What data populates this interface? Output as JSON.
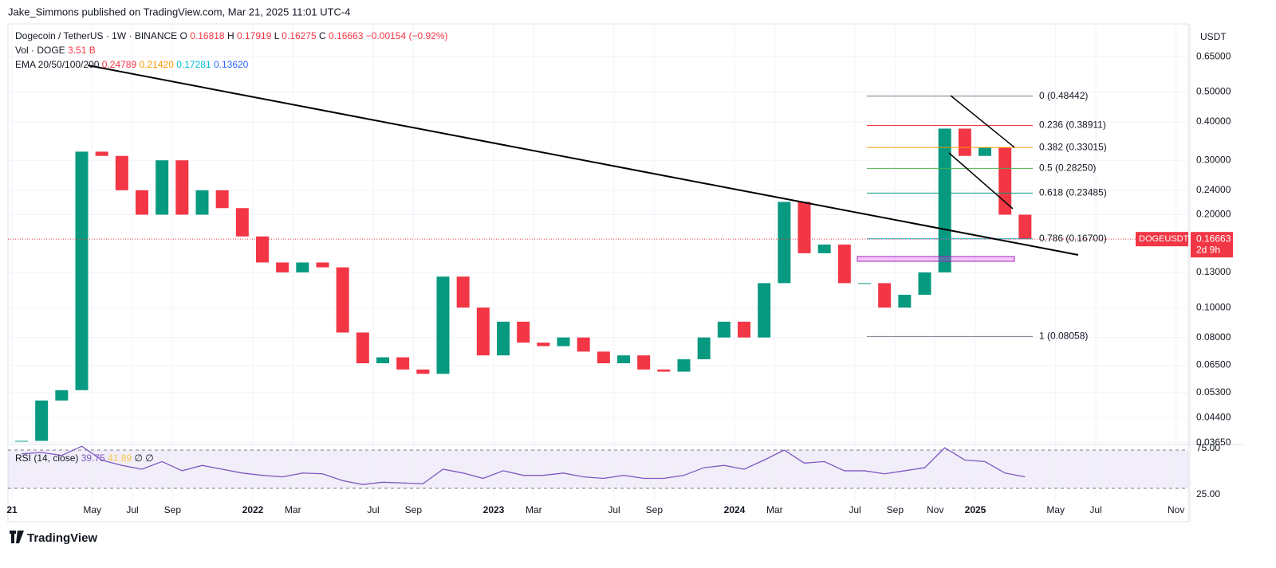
{
  "published": "Jake_Simmons published on TradingView.com, Mar 21, 2025 11:01 UTC-4",
  "brand": "TradingView",
  "chart_data": {
    "type": "candlestick",
    "log_scale": true,
    "symbol": "Dogecoin / TetherUS · 1W · BINANCE",
    "ohlc": [
      {
        "label": "O",
        "value": "0.16818"
      },
      {
        "label": "H",
        "value": "0.17919"
      },
      {
        "label": "L",
        "value": "0.16275"
      },
      {
        "label": "C",
        "value": "0.16663"
      }
    ],
    "change": "−0.00154 (−0.92%)",
    "volume": {
      "label": "Vol · DOGE",
      "value": "3.51 B"
    },
    "ema": {
      "label": "EMA 20/50/100/200",
      "values": [
        {
          "text": "0.24789",
          "color": "#f23645"
        },
        {
          "text": "0.21420",
          "color": "#ff9800"
        },
        {
          "text": "0.17281",
          "color": "#00bcd4"
        },
        {
          "text": "0.13620",
          "color": "#2962ff"
        }
      ]
    },
    "currency": "USDT",
    "last_price": {
      "name": "DOGEUSDT",
      "value": 0.16663,
      "countdown": "2d 9h"
    },
    "x": [
      "2021-01",
      "2021-02",
      "2021-03",
      "2021-04",
      "2021-05",
      "2021-06",
      "2021-07",
      "2021-08",
      "2021-09",
      "2021-10",
      "2021-11",
      "2021-12",
      "2022-01",
      "2022-02",
      "2022-03",
      "2022-04",
      "2022-05",
      "2022-06",
      "2022-07",
      "2022-08",
      "2022-09",
      "2022-10",
      "2022-11",
      "2022-12",
      "2023-01",
      "2023-02",
      "2023-03",
      "2023-04",
      "2023-05",
      "2023-06",
      "2023-07",
      "2023-08",
      "2023-09",
      "2023-10",
      "2023-11",
      "2023-12",
      "2024-01",
      "2024-02",
      "2024-03",
      "2024-04",
      "2024-05",
      "2024-06",
      "2024-07",
      "2024-08",
      "2024-09",
      "2024-10",
      "2024-11",
      "2024-12",
      "2025-01",
      "2025-02",
      "2025-03"
    ],
    "series": [
      {
        "name": "close",
        "up_color": "#089981",
        "down_color": "#f23645",
        "values": [
          0.037,
          0.05,
          0.054,
          0.32,
          0.31,
          0.24,
          0.2,
          0.3,
          0.2,
          0.24,
          0.21,
          0.17,
          0.14,
          0.13,
          0.14,
          0.135,
          0.083,
          0.066,
          0.069,
          0.063,
          0.061,
          0.126,
          0.1,
          0.07,
          0.09,
          0.077,
          0.075,
          0.08,
          0.072,
          0.066,
          0.07,
          0.063,
          0.062,
          0.068,
          0.08,
          0.09,
          0.08,
          0.12,
          0.22,
          0.15,
          0.16,
          0.12,
          0.12,
          0.1,
          0.11,
          0.13,
          0.38,
          0.31,
          0.33,
          0.2,
          0.16663
        ]
      }
    ],
    "ylim": [
      0.036,
      0.83
    ],
    "yticks": [
      {
        "value": 0.0365,
        "label": "0.03650"
      },
      {
        "value": 0.044,
        "label": "0.04400"
      },
      {
        "value": 0.053,
        "label": "0.05300"
      },
      {
        "value": 0.065,
        "label": "0.06500"
      },
      {
        "value": 0.08,
        "label": "0.08000"
      },
      {
        "value": 0.1,
        "label": "0.10000"
      },
      {
        "value": 0.13,
        "label": "0.13000"
      },
      {
        "value": 0.2,
        "label": "0.20000"
      },
      {
        "value": 0.24,
        "label": "0.24000"
      },
      {
        "value": 0.3,
        "label": "0.30000"
      },
      {
        "value": 0.4,
        "label": "0.40000"
      },
      {
        "value": 0.5,
        "label": "0.50000"
      },
      {
        "value": 0.65,
        "label": "0.65000"
      }
    ],
    "xticks": [
      {
        "value": "2021-01",
        "label": "21"
      },
      {
        "value": "2021-05",
        "label": "May"
      },
      {
        "value": "2021-07",
        "label": "Jul"
      },
      {
        "value": "2021-09",
        "label": "Sep"
      },
      {
        "value": "2022-01",
        "label": "2022"
      },
      {
        "value": "2022-03",
        "label": "Mar"
      },
      {
        "value": "2022-07",
        "label": "Jul"
      },
      {
        "value": "2022-09",
        "label": "Sep"
      },
      {
        "value": "2023-01",
        "label": "2023"
      },
      {
        "value": "2023-03",
        "label": "Mar"
      },
      {
        "value": "2023-07",
        "label": "Jul"
      },
      {
        "value": "2023-09",
        "label": "Sep"
      },
      {
        "value": "2024-01",
        "label": "2024"
      },
      {
        "value": "2024-03",
        "label": "Mar"
      },
      {
        "value": "2024-07",
        "label": "Jul"
      },
      {
        "value": "2024-09",
        "label": "Sep"
      },
      {
        "value": "2024-11",
        "label": "Nov"
      },
      {
        "value": "2025-01",
        "label": "2025"
      },
      {
        "value": "2025-05",
        "label": "May"
      },
      {
        "value": "2025-07",
        "label": "Jul"
      },
      {
        "value": "2025-11",
        "label": "Nov"
      }
    ],
    "fib_levels": [
      {
        "label": "0 (0.48442)",
        "value": 0.48442,
        "color": "#787b86"
      },
      {
        "label": "0.236 (0.38911)",
        "value": 0.38911,
        "color": "#f23645"
      },
      {
        "label": "0.382 (0.33015)",
        "value": 0.33015,
        "color": "#ff9800"
      },
      {
        "label": "0.5 (0.28250)",
        "value": 0.2825,
        "color": "#4caf50"
      },
      {
        "label": "0.618 (0.23485)",
        "value": 0.23485,
        "color": "#089981"
      },
      {
        "label": "0.786 (0.16700)",
        "value": 0.167,
        "color": "#00acc1"
      },
      {
        "label": "1 (0.08058)",
        "value": 0.08058,
        "color": "#787b86"
      }
    ],
    "rsi": {
      "label": "RSI (14, close)",
      "value": "39.75",
      "ma": "41.89",
      "extra": [
        "∅",
        "∅"
      ],
      "color": "#7e57c2",
      "ylim": [
        20,
        80
      ],
      "yticks": [
        {
          "value": 75,
          "label": "75.00"
        },
        {
          "value": 25,
          "label": "25.00"
        }
      ],
      "values": [
        70,
        72,
        68,
        80,
        62,
        55,
        50,
        60,
        48,
        55,
        50,
        45,
        42,
        40,
        45,
        44,
        35,
        30,
        33,
        32,
        31,
        50,
        45,
        38,
        48,
        42,
        42,
        45,
        40,
        38,
        42,
        38,
        38,
        42,
        52,
        55,
        50,
        62,
        75,
        58,
        60,
        48,
        48,
        44,
        48,
        52,
        78,
        62,
        60,
        45,
        40
      ]
    }
  }
}
